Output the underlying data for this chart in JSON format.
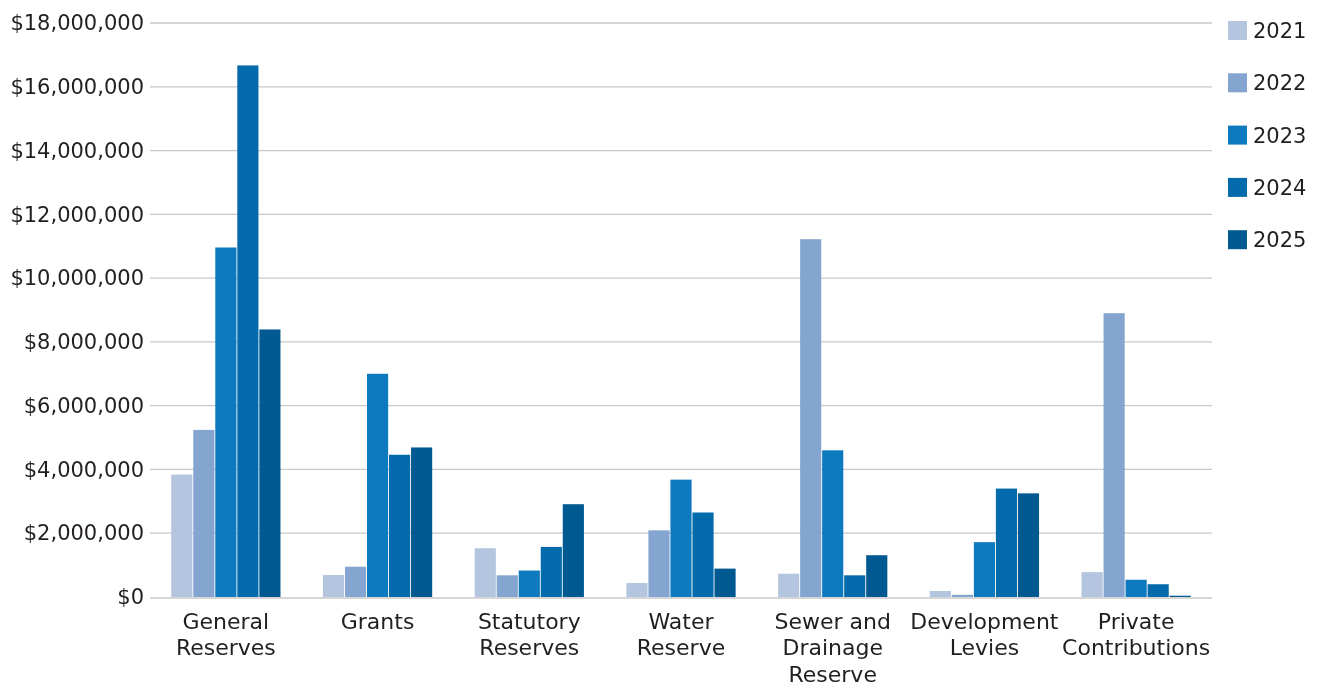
{
  "chart_data": {
    "type": "bar",
    "categories": [
      "General Reserves",
      "Grants",
      "Statutory Reserves",
      "Water Reserve",
      "Sewer and Drainage Reserve",
      "Development Levies",
      "Private Contributions"
    ],
    "series": [
      {
        "name": "2021",
        "color": "#b4c5e0",
        "values": [
          3840000,
          690000,
          1530000,
          440000,
          730000,
          190000,
          780000
        ]
      },
      {
        "name": "2022",
        "color": "#84a5cf",
        "values": [
          5240000,
          950000,
          680000,
          2090000,
          11220000,
          70000,
          8900000
        ]
      },
      {
        "name": "2023",
        "color": "#0d79bf",
        "values": [
          10960000,
          7000000,
          830000,
          3680000,
          4600000,
          1720000,
          540000
        ]
      },
      {
        "name": "2024",
        "color": "#036aab",
        "values": [
          16670000,
          4460000,
          1570000,
          2650000,
          680000,
          3400000,
          400000
        ]
      },
      {
        "name": "2025",
        "color": "#005a91",
        "values": [
          8390000,
          4690000,
          2910000,
          890000,
          1310000,
          3250000,
          40000
        ]
      }
    ],
    "ylim": [
      0,
      18000000
    ],
    "yticks": [
      {
        "value": 0,
        "label": "$0"
      },
      {
        "value": 2000000,
        "label": "$2,000,000"
      },
      {
        "value": 4000000,
        "label": "$4,000,000"
      },
      {
        "value": 6000000,
        "label": "$6,000,000"
      },
      {
        "value": 8000000,
        "label": "$8,000,000"
      },
      {
        "value": 10000000,
        "label": "$10,000,000"
      },
      {
        "value": 12000000,
        "label": "$12,000,000"
      },
      {
        "value": 14000000,
        "label": "$14,000,000"
      },
      {
        "value": 16000000,
        "label": "$16,000,000"
      },
      {
        "value": 18000000,
        "label": "$18,000,000"
      }
    ],
    "grid": "y",
    "legend": "right"
  }
}
